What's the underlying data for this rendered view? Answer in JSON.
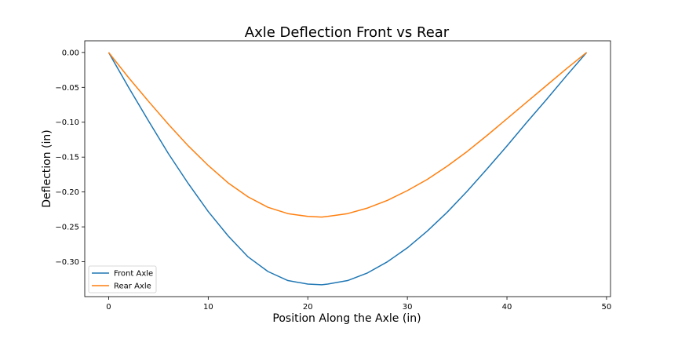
{
  "chart_data": {
    "type": "line",
    "title": "Axle Deflection Front vs Rear",
    "xlabel": "Position Along the Axle (in)",
    "ylabel": "Deflection (in)",
    "xlim": [
      -2.4,
      50.4
    ],
    "ylim": [
      -0.35,
      0.0167
    ],
    "xticks": [
      0,
      10,
      20,
      30,
      40,
      50
    ],
    "xtick_labels": [
      "0",
      "10",
      "20",
      "30",
      "40",
      "50"
    ],
    "yticks": [
      0.0,
      -0.05,
      -0.1,
      -0.15,
      -0.2,
      -0.25,
      -0.3
    ],
    "ytick_labels": [
      "0.00",
      "−0.05",
      "−0.10",
      "−0.15",
      "−0.20",
      "−0.25",
      "−0.30"
    ],
    "grid": false,
    "legend_position": "lower-left",
    "x": [
      0,
      2,
      4,
      6,
      8,
      10,
      12,
      14,
      16,
      18,
      20,
      21.4,
      22,
      24,
      26,
      28,
      30,
      32,
      34,
      36,
      38,
      40,
      42,
      44,
      46,
      48
    ],
    "series": [
      {
        "name": "Front Axle",
        "color": "#1f77b4",
        "values": [
          0.0,
          -0.05,
          -0.098,
          -0.145,
          -0.188,
          -0.228,
          -0.263,
          -0.293,
          -0.314,
          -0.327,
          -0.332,
          -0.333,
          -0.332,
          -0.327,
          -0.316,
          -0.3,
          -0.28,
          -0.256,
          -0.229,
          -0.199,
          -0.167,
          -0.134,
          -0.1,
          -0.067,
          -0.033,
          0.0
        ]
      },
      {
        "name": "Rear Axle",
        "color": "#ff7f0e",
        "values": [
          0.0,
          -0.036,
          -0.07,
          -0.103,
          -0.134,
          -0.162,
          -0.187,
          -0.207,
          -0.222,
          -0.231,
          -0.235,
          -0.236,
          -0.235,
          -0.231,
          -0.223,
          -0.212,
          -0.198,
          -0.182,
          -0.163,
          -0.142,
          -0.119,
          -0.095,
          -0.071,
          -0.047,
          -0.023,
          0.0
        ]
      }
    ]
  }
}
